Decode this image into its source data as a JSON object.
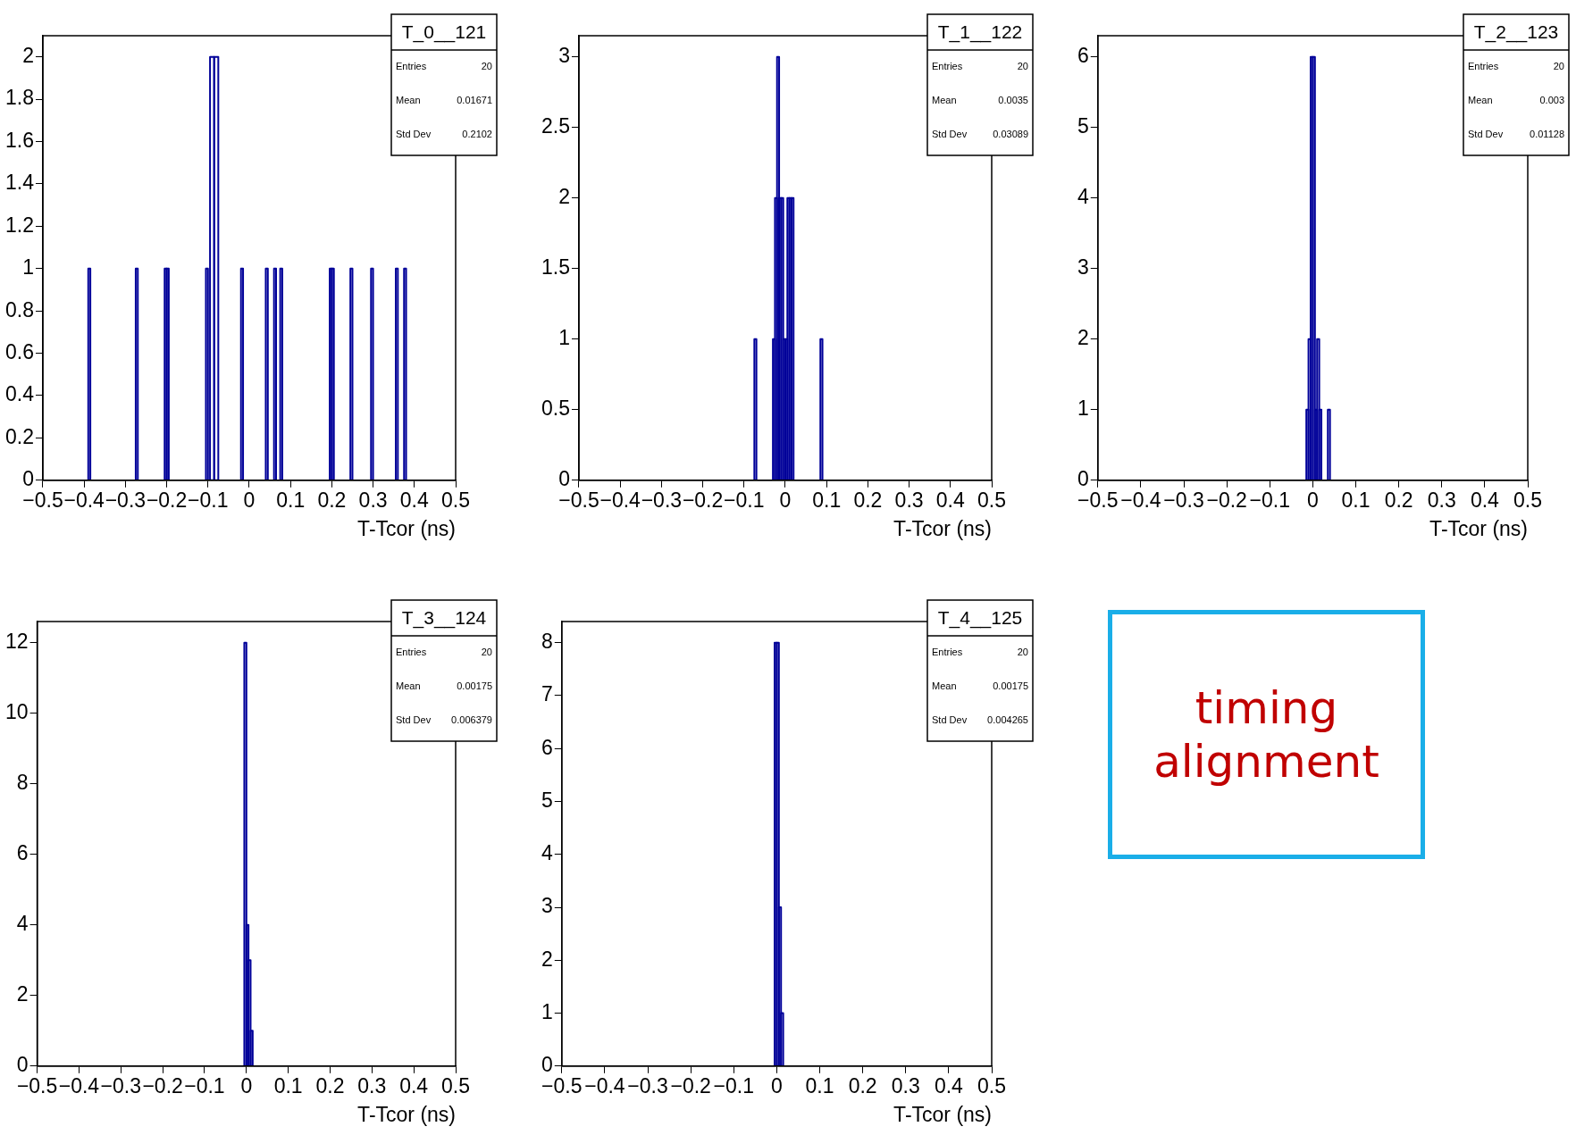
{
  "chart_data": [
    {
      "type": "histogram",
      "title": "T_0__121",
      "xlabel": "T-Tcor (ns)",
      "annotations": [
        "Entries",
        "20",
        "Mean",
        "0.01671",
        "Std Dev",
        "0.2102"
      ],
      "color": "#000099",
      "bins": [
        -0.39,
        -0.385,
        -0.275,
        -0.27,
        -0.205,
        -0.2,
        -0.195,
        -0.105,
        -0.1,
        -0.095,
        -0.085,
        -0.075,
        -0.02,
        -0.015,
        0.04,
        0.045,
        0.06,
        0.065,
        0.075,
        0.08,
        0.195,
        0.2,
        0.205,
        0.245,
        0.25,
        0.295,
        0.3,
        0.355,
        0.36,
        0.375,
        0.38
      ],
      "values": [
        1,
        0,
        1,
        0,
        1,
        1,
        0,
        1,
        0,
        2,
        2,
        0,
        1,
        0,
        1,
        0,
        1,
        0,
        1,
        0,
        1,
        1,
        0,
        1,
        0,
        1,
        0,
        1,
        0,
        1
      ],
      "xlim": [
        -0.5,
        0.5
      ],
      "xticks": [
        {
          "value": -0.5,
          "label": "−0.5"
        },
        {
          "value": -0.4,
          "label": "−0.4"
        },
        {
          "value": -0.3,
          "label": "−0.3"
        },
        {
          "value": -0.2,
          "label": "−0.2"
        },
        {
          "value": -0.1,
          "label": "−0.1"
        },
        0,
        0.1,
        0.2,
        0.3,
        0.4,
        0.5
      ],
      "ylim": [
        0,
        2.1
      ],
      "yticks": [
        0,
        0.2,
        0.4,
        0.6,
        0.8,
        1,
        1.2,
        1.4,
        1.6,
        1.8,
        2
      ]
    },
    {
      "type": "histogram",
      "title": "T_1__122",
      "xlabel": "T-Tcor (ns)",
      "annotations": [
        "Entries",
        "20",
        "Mean",
        "0.0035",
        "Std Dev",
        "0.03089"
      ],
      "color": "#000099",
      "bins": [
        -0.075,
        -0.07,
        -0.03,
        -0.025,
        -0.02,
        -0.015,
        -0.01,
        -0.005,
        0,
        0.005,
        0.01,
        0.015,
        0.02,
        0.085,
        0.09
      ],
      "values": [
        1,
        0,
        1,
        2,
        3,
        2,
        2,
        1,
        1,
        2,
        2,
        2,
        0,
        1
      ],
      "xlim": [
        -0.5,
        0.5
      ],
      "xticks": [
        {
          "value": -0.5,
          "label": "−0.5"
        },
        {
          "value": -0.4,
          "label": "−0.4"
        },
        {
          "value": -0.3,
          "label": "−0.3"
        },
        {
          "value": -0.2,
          "label": "−0.2"
        },
        {
          "value": -0.1,
          "label": "−0.1"
        },
        0,
        0.1,
        0.2,
        0.3,
        0.4,
        0.5
      ],
      "ylim": [
        0,
        3.15
      ],
      "yticks": [
        0,
        0.5,
        1,
        1.5,
        2,
        2.5,
        3
      ]
    },
    {
      "type": "histogram",
      "title": "T_2__123",
      "xlabel": "T-Tcor (ns)",
      "annotations": [
        "Entries",
        "20",
        "Mean",
        "0.003",
        "Std Dev",
        "0.01128"
      ],
      "color": "#000099",
      "bins": [
        -0.015,
        -0.01,
        -0.005,
        0,
        0.005,
        0.01,
        0.015,
        0.02,
        0.035,
        0.04
      ],
      "values": [
        1,
        2,
        6,
        6,
        1,
        2,
        1,
        0,
        1
      ],
      "xlim": [
        -0.5,
        0.5
      ],
      "xticks": [
        {
          "value": -0.5,
          "label": "−0.5"
        },
        {
          "value": -0.4,
          "label": "−0.4"
        },
        {
          "value": -0.3,
          "label": "−0.3"
        },
        {
          "value": -0.2,
          "label": "−0.2"
        },
        {
          "value": -0.1,
          "label": "−0.1"
        },
        0,
        0.1,
        0.2,
        0.3,
        0.4,
        0.5
      ],
      "ylim": [
        0,
        6.3
      ],
      "yticks": [
        0,
        1,
        2,
        3,
        4,
        5,
        6
      ]
    },
    {
      "type": "histogram",
      "title": "T_3__124",
      "xlabel": "T-Tcor (ns)",
      "annotations": [
        "Entries",
        "20",
        "Mean",
        "0.00175",
        "Std Dev",
        "0.006379"
      ],
      "color": "#000099",
      "bins": [
        -0.005,
        0,
        0.005,
        0.01,
        0.015
      ],
      "values": [
        12,
        4,
        3,
        1
      ],
      "xlim": [
        -0.5,
        0.5
      ],
      "xticks": [
        {
          "value": -0.5,
          "label": "−0.5"
        },
        {
          "value": -0.4,
          "label": "−0.4"
        },
        {
          "value": -0.3,
          "label": "−0.3"
        },
        {
          "value": -0.2,
          "label": "−0.2"
        },
        {
          "value": -0.1,
          "label": "−0.1"
        },
        0,
        0.1,
        0.2,
        0.3,
        0.4,
        0.5
      ],
      "ylim": [
        0,
        12.6
      ],
      "yticks": [
        0,
        2,
        4,
        6,
        8,
        10,
        12
      ]
    },
    {
      "type": "histogram",
      "title": "T_4__125",
      "xlabel": "T-Tcor (ns)",
      "annotations": [
        "Entries",
        "20",
        "Mean",
        "0.00175",
        "Std Dev",
        "0.004265"
      ],
      "color": "#000099",
      "bins": [
        -0.005,
        0,
        0.005,
        0.01,
        0.015
      ],
      "values": [
        8,
        8,
        3,
        1
      ],
      "xlim": [
        -0.5,
        0.5
      ],
      "xticks": [
        {
          "value": -0.5,
          "label": "−0.5"
        },
        {
          "value": -0.4,
          "label": "−0.4"
        },
        {
          "value": -0.3,
          "label": "−0.3"
        },
        {
          "value": -0.2,
          "label": "−0.2"
        },
        {
          "value": -0.1,
          "label": "−0.1"
        },
        0,
        0.1,
        0.2,
        0.3,
        0.4,
        0.5
      ],
      "ylim": [
        0,
        8.4
      ],
      "yticks": [
        0,
        1,
        2,
        3,
        4,
        5,
        6,
        7,
        8
      ]
    },
    {
      "type": "other",
      "annotations": [
        "timing alignment"
      ]
    }
  ]
}
